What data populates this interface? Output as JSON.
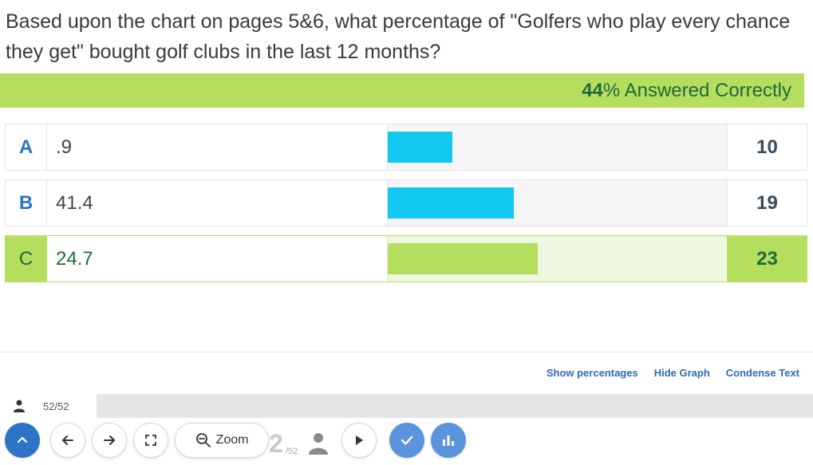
{
  "question": {
    "text": "Based upon the chart on pages  5&6, what percentage of \"Golfers who play every chance they get\" bought golf clubs in the last 12 months?"
  },
  "result": {
    "percent": "44",
    "percent_symbol": "%",
    "label": " Answered Correctly"
  },
  "answers": [
    {
      "letter": "A",
      "text": ".9",
      "count": "10",
      "correct": false,
      "bar_fraction": 0.19
    },
    {
      "letter": "B",
      "text": "41.4",
      "count": "19",
      "correct": false,
      "bar_fraction": 0.37
    },
    {
      "letter": "C",
      "text": "24.7",
      "count": "23",
      "correct": true,
      "bar_fraction": 0.44
    }
  ],
  "links": {
    "show_percentages": "Show percentages",
    "hide_graph": "Hide Graph",
    "condense_text": "Condense Text"
  },
  "progress": {
    "label": "52/52",
    "fraction": 0.0
  },
  "toolbar": {
    "zoom_label": "Zoom",
    "page_current": "2",
    "page_total": "/52"
  },
  "colors": {
    "correct_green": "#b5de5f",
    "bar_blue": "#12c8ef",
    "accent_blue": "#2d73c6",
    "progress_blue": "#6594b6"
  },
  "icons": {
    "person": "person-icon",
    "collapse": "chevron-up-icon",
    "back": "arrow-left-icon",
    "forward": "arrow-right-icon",
    "fullscreen": "fullscreen-icon",
    "zoom": "magnifier-icon",
    "presenter": "person-icon",
    "play": "play-icon",
    "check": "check-icon",
    "chart": "bar-chart-icon"
  }
}
